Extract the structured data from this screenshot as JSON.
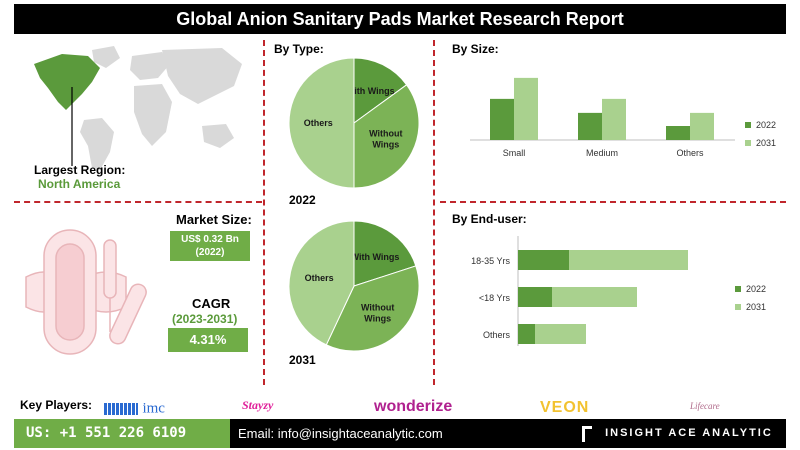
{
  "title": "Global Anion Sanitary Pads Market Research Report",
  "region": {
    "label": "Largest Region:",
    "value": "North America"
  },
  "market_size": {
    "label": "Market Size:",
    "value": "US$ 0.32 Bn",
    "year": "(2022)"
  },
  "cagr": {
    "label": "CAGR",
    "period": "(2023-2031)",
    "value": "4.31%"
  },
  "by_type": {
    "title": "By  Type:",
    "year_2022": "2022",
    "year_2031": "2031"
  },
  "by_size": {
    "title": "By Size:"
  },
  "by_enduser": {
    "title": "By End-user:"
  },
  "key_players": {
    "label": "Key Players:",
    "logos": [
      "imc",
      "Stayzy",
      "wonderize",
      "VEON",
      "Lifecare"
    ]
  },
  "footer": {
    "phone": "US: +1 551 226 6109",
    "email": "Email: info@insightaceanalytic.com",
    "brand": "INSIGHT ACE ANALYTIC"
  },
  "colors": {
    "dark_green": "#5b9a3c",
    "light_green": "#a9d18e",
    "mid_green": "#7cb356",
    "accent_red": "#c0262c"
  },
  "chart_data": [
    {
      "type": "pie",
      "title": "2022",
      "labels": [
        "With Wings",
        "Without Wings",
        "Others"
      ],
      "values": [
        15,
        35,
        50
      ]
    },
    {
      "type": "pie",
      "title": "2031",
      "labels": [
        "With Wings",
        "Without Wings",
        "Others"
      ],
      "values": [
        20,
        37,
        43
      ]
    },
    {
      "type": "bar",
      "title": "By Size:",
      "categories": [
        "Small",
        "Medium",
        "Others"
      ],
      "series": [
        {
          "name": "2022",
          "values": [
            47,
            31,
            16
          ]
        },
        {
          "name": "2031",
          "values": [
            71,
            47,
            31
          ]
        }
      ],
      "legend": "right"
    },
    {
      "type": "bar",
      "orientation": "horizontal",
      "title": "By End-user:",
      "categories": [
        "18-35 Yrs",
        "<18 Yrs",
        "Others"
      ],
      "series": [
        {
          "name": "2022",
          "values": [
            60,
            40,
            20
          ]
        },
        {
          "name": "2031",
          "values": [
            140,
            100,
            60
          ]
        }
      ],
      "legend": "right"
    }
  ]
}
